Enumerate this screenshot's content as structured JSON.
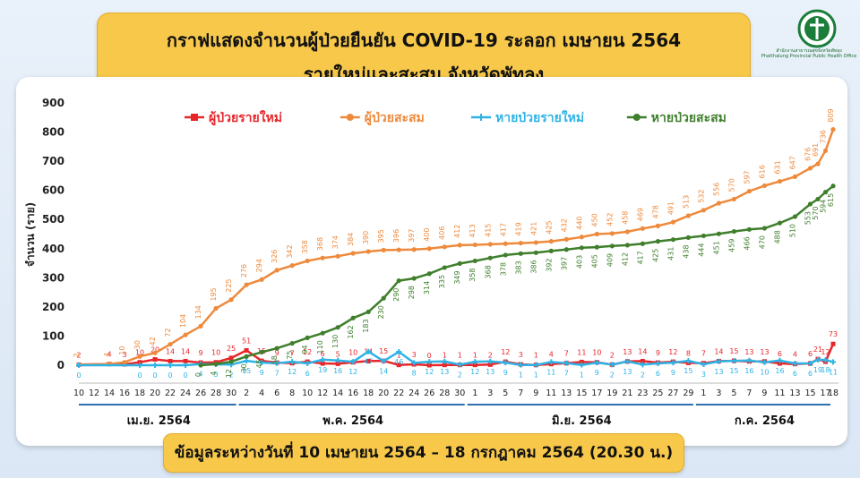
{
  "header": {
    "title_line1": "กราฟแสดงจำนวนผู้ป่วยยืนยัน COVID-19 ระลอก เมษายน 2564",
    "title_line2": "รายใหม่และสะสม จังหวัดพัทลุง",
    "logo_text": "สำนักงานสาธารณสุขจังหวัดพัทลุง",
    "logo_text_en": "Phatthalung Provincial Public Health Office"
  },
  "footer": {
    "note": "ข้อมูลระหว่างวันที่ 10 เมษายน 2564 – 18 กรกฎาคม 2564 (20.30 น.)"
  },
  "colors": {
    "new_cases": "#e8262a",
    "cumulative_cases": "#ee8a3c",
    "new_recovered": "#2eb3e6",
    "cumulative_recovered": "#3f7f2c",
    "accent": "#f7c84a"
  },
  "chart_data": {
    "type": "line",
    "ylabel": "จำนวน (ราย)",
    "xlabel": "",
    "ylim": [
      0,
      900
    ],
    "yticks": [
      0,
      100,
      200,
      300,
      400,
      500,
      600,
      700,
      800,
      900
    ],
    "grid": false,
    "legend": "top",
    "x_tick_labels": [
      "10",
      "12",
      "14",
      "16",
      "18",
      "20",
      "22",
      "24",
      "26",
      "28",
      "30",
      "2",
      "4",
      "6",
      "8",
      "10",
      "12",
      "14",
      "16",
      "18",
      "20",
      "22",
      "24",
      "26",
      "28",
      "30",
      "1",
      "3",
      "5",
      "7",
      "9",
      "11",
      "13",
      "15",
      "17",
      "19",
      "21",
      "23",
      "25",
      "27",
      "29",
      "1",
      "3",
      "5",
      "7",
      "9",
      "11",
      "13",
      "15",
      "17",
      "18"
    ],
    "months": [
      "เม.ย. 2564",
      "พ.ค. 2564",
      "มิ.ย. 2564",
      "ก.ค. 2564"
    ],
    "series": [
      {
        "name": "ผู้ป่วยรายใหม่",
        "key": "new_cases",
        "points": [
          [
            0,
            2
          ],
          [
            4,
            4
          ],
          [
            6,
            3
          ],
          [
            8,
            10
          ],
          [
            10,
            20
          ],
          [
            12,
            14
          ],
          [
            14,
            14
          ],
          [
            16,
            9
          ],
          [
            18,
            10
          ],
          [
            20,
            25
          ],
          [
            22,
            51
          ],
          [
            24,
            15
          ],
          [
            26,
            9
          ],
          [
            28,
            7
          ],
          [
            30,
            12
          ],
          [
            32,
            6
          ],
          [
            34,
            5
          ],
          [
            36,
            10
          ],
          [
            38,
            14
          ],
          [
            40,
            15
          ],
          [
            42,
            1
          ],
          [
            44,
            3
          ],
          [
            46,
            0
          ],
          [
            48,
            1
          ],
          [
            50,
            1
          ],
          [
            52,
            1
          ],
          [
            54,
            2
          ],
          [
            56,
            12
          ],
          [
            58,
            3
          ],
          [
            60,
            1
          ],
          [
            62,
            4
          ],
          [
            64,
            7
          ],
          [
            66,
            11
          ],
          [
            68,
            10
          ],
          [
            70,
            2
          ],
          [
            72,
            13
          ],
          [
            74,
            14
          ],
          [
            76,
            9
          ],
          [
            78,
            12
          ],
          [
            80,
            8
          ],
          [
            82,
            7
          ],
          [
            84,
            14
          ],
          [
            86,
            15
          ],
          [
            88,
            13
          ],
          [
            90,
            13
          ],
          [
            92,
            6
          ],
          [
            94,
            4
          ],
          [
            96,
            6
          ],
          [
            97,
            21
          ],
          [
            98,
            12
          ],
          [
            99,
            73
          ]
        ]
      },
      {
        "name": "ผู้ป่วยสะสม",
        "key": "cumulative_cases",
        "points": [
          [
            0,
            2
          ],
          [
            4,
            4
          ],
          [
            6,
            10
          ],
          [
            8,
            30
          ],
          [
            10,
            42
          ],
          [
            12,
            72
          ],
          [
            14,
            104
          ],
          [
            16,
            134
          ],
          [
            18,
            195
          ],
          [
            20,
            225
          ],
          [
            22,
            276
          ],
          [
            24,
            294
          ],
          [
            26,
            326
          ],
          [
            28,
            342
          ],
          [
            30,
            358
          ],
          [
            32,
            368
          ],
          [
            34,
            374
          ],
          [
            36,
            384
          ],
          [
            38,
            390
          ],
          [
            40,
            395
          ],
          [
            42,
            396
          ],
          [
            44,
            397
          ],
          [
            46,
            400
          ],
          [
            48,
            406
          ],
          [
            50,
            412
          ],
          [
            52,
            413
          ],
          [
            54,
            415
          ],
          [
            56,
            417
          ],
          [
            58,
            419
          ],
          [
            60,
            421
          ],
          [
            62,
            425
          ],
          [
            64,
            432
          ],
          [
            66,
            440
          ],
          [
            68,
            450
          ],
          [
            70,
            452
          ],
          [
            72,
            458
          ],
          [
            74,
            469
          ],
          [
            76,
            478
          ],
          [
            78,
            491
          ],
          [
            80,
            513
          ],
          [
            82,
            532
          ],
          [
            84,
            556
          ],
          [
            86,
            570
          ],
          [
            88,
            597
          ],
          [
            90,
            616
          ],
          [
            92,
            631
          ],
          [
            94,
            647
          ],
          [
            96,
            676
          ],
          [
            97,
            691
          ],
          [
            98,
            736
          ],
          [
            99,
            809
          ]
        ]
      },
      {
        "name": "หายป่วยรายใหม่",
        "key": "new_recovered",
        "points": [
          [
            0,
            0
          ],
          [
            8,
            0
          ],
          [
            10,
            0
          ],
          [
            12,
            0
          ],
          [
            14,
            0
          ],
          [
            16,
            4
          ],
          [
            18,
            3
          ],
          [
            20,
            2
          ],
          [
            22,
            15
          ],
          [
            24,
            9
          ],
          [
            26,
            7
          ],
          [
            28,
            12
          ],
          [
            30,
            6
          ],
          [
            32,
            19
          ],
          [
            34,
            16
          ],
          [
            36,
            12
          ],
          [
            38,
            47
          ],
          [
            40,
            14
          ],
          [
            42,
            46
          ],
          [
            44,
            8
          ],
          [
            46,
            12
          ],
          [
            48,
            13
          ],
          [
            50,
            2
          ],
          [
            52,
            12
          ],
          [
            54,
            13
          ],
          [
            56,
            9
          ],
          [
            58,
            1
          ],
          [
            60,
            1
          ],
          [
            62,
            11
          ],
          [
            64,
            7
          ],
          [
            66,
            1
          ],
          [
            68,
            9
          ],
          [
            70,
            2
          ],
          [
            72,
            13
          ],
          [
            74,
            2
          ],
          [
            76,
            6
          ],
          [
            78,
            9
          ],
          [
            80,
            15
          ],
          [
            82,
            3
          ],
          [
            84,
            13
          ],
          [
            86,
            15
          ],
          [
            88,
            16
          ],
          [
            90,
            10
          ],
          [
            92,
            16
          ],
          [
            94,
            6
          ],
          [
            96,
            6
          ],
          [
            97,
            19
          ],
          [
            98,
            18
          ],
          [
            99,
            11
          ]
        ]
      },
      {
        "name": "หายป่วยสะสม",
        "key": "cumulative_recovered",
        "points": [
          [
            16,
            0
          ],
          [
            18,
            4
          ],
          [
            20,
            12
          ],
          [
            22,
            30
          ],
          [
            24,
            45
          ],
          [
            26,
            58
          ],
          [
            28,
            75
          ],
          [
            30,
            94
          ],
          [
            32,
            110
          ],
          [
            34,
            130
          ],
          [
            36,
            162
          ],
          [
            38,
            183
          ],
          [
            40,
            230
          ],
          [
            42,
            290
          ],
          [
            44,
            298
          ],
          [
            46,
            314
          ],
          [
            48,
            335
          ],
          [
            50,
            349
          ],
          [
            52,
            358
          ],
          [
            54,
            368
          ],
          [
            56,
            378
          ],
          [
            58,
            383
          ],
          [
            60,
            386
          ],
          [
            62,
            392
          ],
          [
            64,
            397
          ],
          [
            66,
            403
          ],
          [
            68,
            405
          ],
          [
            70,
            409
          ],
          [
            72,
            412
          ],
          [
            74,
            417
          ],
          [
            76,
            425
          ],
          [
            78,
            431
          ],
          [
            80,
            438
          ],
          [
            82,
            444
          ],
          [
            84,
            451
          ],
          [
            86,
            459
          ],
          [
            88,
            466
          ],
          [
            90,
            470
          ],
          [
            92,
            488
          ],
          [
            94,
            510
          ],
          [
            96,
            553
          ],
          [
            97,
            570
          ],
          [
            98,
            594
          ],
          [
            99,
            615
          ]
        ]
      }
    ]
  }
}
